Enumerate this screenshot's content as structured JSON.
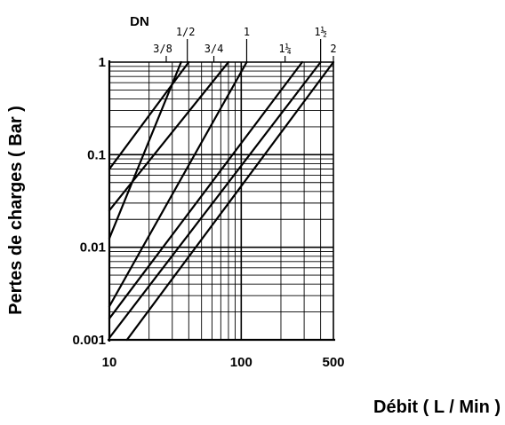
{
  "chart_data": {
    "type": "line",
    "xscale": "log",
    "yscale": "log",
    "xlim": [
      10,
      500
    ],
    "ylim": [
      0.001,
      1
    ],
    "xlabel": "Débit ( L / Min )",
    "ylabel": "Pertes de charges ( Bar )",
    "x_ticks": [
      {
        "value": 10,
        "label": "10"
      },
      {
        "value": 100,
        "label": "100"
      },
      {
        "value": 500,
        "label": "500"
      }
    ],
    "y_ticks": [
      {
        "value": 0.001,
        "label": "0.001"
      },
      {
        "value": 0.01,
        "label": "0.01"
      },
      {
        "value": 0.1,
        "label": "0.1"
      },
      {
        "value": 1,
        "label": "1"
      }
    ],
    "grid": true,
    "top_axis_title": "DN",
    "series": [
      {
        "name": "3/8",
        "points": [
          [
            10,
            0.0125
          ],
          [
            35,
            1
          ]
        ]
      },
      {
        "name": "1/2",
        "points": [
          [
            10,
            0.07
          ],
          [
            40,
            1
          ]
        ]
      },
      {
        "name": "3/4",
        "points": [
          [
            10,
            0.025
          ],
          [
            80,
            1
          ]
        ]
      },
      {
        "name": "1",
        "points": [
          [
            10,
            0.0023
          ],
          [
            110,
            1
          ]
        ]
      },
      {
        "name": "1¼",
        "points": [
          [
            10,
            0.0017
          ],
          [
            290,
            1
          ]
        ]
      },
      {
        "name": "1½",
        "points": [
          [
            10,
            0.00105
          ],
          [
            400,
            1
          ]
        ]
      },
      {
        "name": "2",
        "points": [
          [
            13.6,
            0.001
          ],
          [
            500,
            1
          ]
        ]
      }
    ],
    "series_labels": [
      {
        "name": "3/8",
        "x": 27
      },
      {
        "name": "1/2",
        "x": 39
      },
      {
        "name": "3/4",
        "x": 62
      },
      {
        "name": "1",
        "x": 110
      },
      {
        "name": "1¼",
        "x": 215
      },
      {
        "name": "1½",
        "x": 400
      },
      {
        "name": "2",
        "x": 500
      }
    ]
  }
}
